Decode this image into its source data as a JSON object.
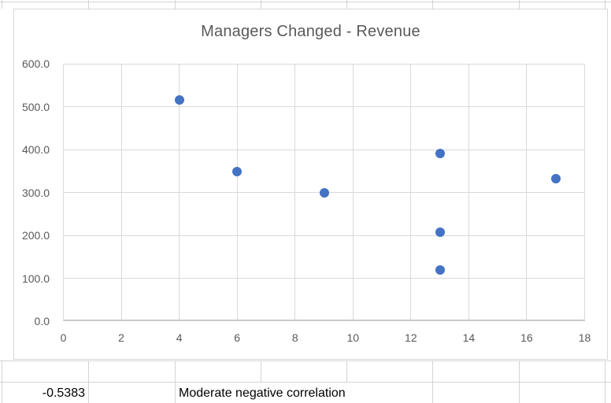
{
  "spreadsheet": {
    "correlation_value": "-0.5383",
    "correlation_label": "Moderate negative correlation"
  },
  "chart_data": {
    "type": "scatter",
    "title": "Managers Changed - Revenue",
    "points": [
      {
        "x": 4,
        "y": 515
      },
      {
        "x": 6,
        "y": 348
      },
      {
        "x": 9,
        "y": 300
      },
      {
        "x": 13,
        "y": 390
      },
      {
        "x": 13,
        "y": 207
      },
      {
        "x": 13,
        "y": 120
      },
      {
        "x": 17,
        "y": 333
      }
    ],
    "xlim": [
      0,
      18
    ],
    "ylim": [
      0,
      600
    ],
    "x_ticks": [
      0,
      2,
      4,
      6,
      8,
      10,
      12,
      14,
      16,
      18
    ],
    "x_tick_labels": [
      "0",
      "2",
      "4",
      "6",
      "8",
      "10",
      "12",
      "14",
      "16",
      "18"
    ],
    "y_ticks": [
      0,
      100,
      200,
      300,
      400,
      500,
      600
    ],
    "y_tick_labels": [
      "0.0",
      "100.0",
      "200.0",
      "300.0",
      "400.0",
      "500.0",
      "600.0"
    ],
    "grid": true,
    "legend": "none",
    "marker_color": "#4472C4",
    "title_color": "#595959",
    "axis_label_color": "#595959",
    "gridline_color": "#D9D9D9"
  }
}
